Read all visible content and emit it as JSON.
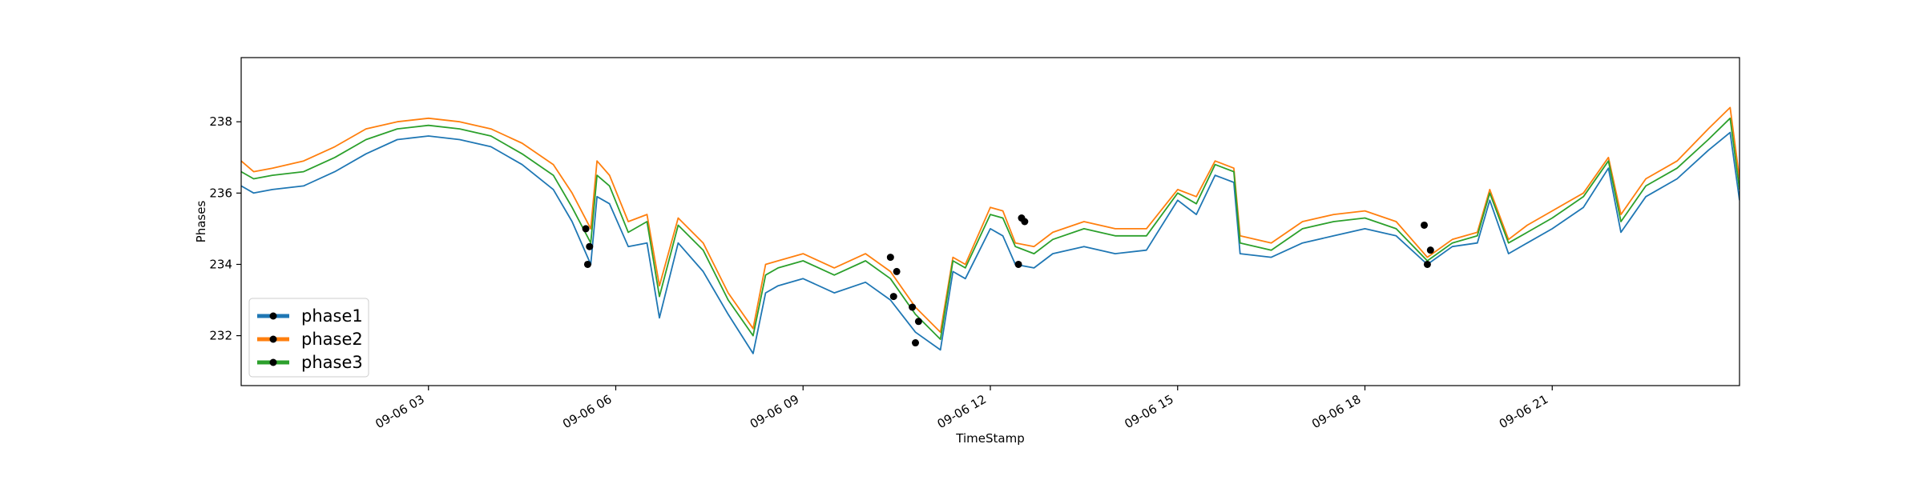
{
  "chart_data": {
    "type": "line",
    "title": "",
    "xlabel": "TimeStamp",
    "ylabel": "Phases",
    "x_unit": "hours since 09-06 00:00",
    "xlim": [
      0,
      24
    ],
    "ylim": [
      230.6,
      239.8
    ],
    "x_ticks": [
      {
        "value": 3,
        "label": "09-06 03"
      },
      {
        "value": 6,
        "label": "09-06 06"
      },
      {
        "value": 9,
        "label": "09-06 09"
      },
      {
        "value": 12,
        "label": "09-06 12"
      },
      {
        "value": 15,
        "label": "09-06 15"
      },
      {
        "value": 18,
        "label": "09-06 18"
      },
      {
        "value": 21,
        "label": "09-06 21"
      }
    ],
    "y_ticks": [
      232,
      234,
      236,
      238
    ],
    "grid": false,
    "legend_position": "lower-left",
    "series": [
      {
        "name": "phase1",
        "color": "#1f77b4",
        "x": [
          0.0,
          0.2,
          0.5,
          1.0,
          1.5,
          2.0,
          2.5,
          3.0,
          3.5,
          4.0,
          4.5,
          5.0,
          5.3,
          5.6,
          5.7,
          5.9,
          6.2,
          6.5,
          6.7,
          7.0,
          7.4,
          7.8,
          8.2,
          8.4,
          8.6,
          9.0,
          9.5,
          10.0,
          10.4,
          10.8,
          11.2,
          11.4,
          11.6,
          12.0,
          12.2,
          12.4,
          12.7,
          13.0,
          13.5,
          14.0,
          14.5,
          15.0,
          15.3,
          15.6,
          15.9,
          16.0,
          16.5,
          17.0,
          17.5,
          18.0,
          18.5,
          19.0,
          19.4,
          19.8,
          20.0,
          20.3,
          20.6,
          21.0,
          21.5,
          21.9,
          22.1,
          22.5,
          23.0,
          23.5,
          23.85,
          24.0
        ],
        "values": [
          236.2,
          236.0,
          236.1,
          236.2,
          236.6,
          237.1,
          237.5,
          237.6,
          237.5,
          237.3,
          236.8,
          236.1,
          235.2,
          234.0,
          235.9,
          235.7,
          234.5,
          234.6,
          232.5,
          234.6,
          233.8,
          232.6,
          231.5,
          233.2,
          233.4,
          233.6,
          233.2,
          233.5,
          233.0,
          232.1,
          231.6,
          233.8,
          233.6,
          235.0,
          234.8,
          234.0,
          233.9,
          234.3,
          234.5,
          234.3,
          234.4,
          235.8,
          235.4,
          236.5,
          236.3,
          234.3,
          234.2,
          234.6,
          234.8,
          235.0,
          234.8,
          234.0,
          234.5,
          234.6,
          235.8,
          234.3,
          234.6,
          235.0,
          235.6,
          236.7,
          234.9,
          235.9,
          236.4,
          237.2,
          237.7,
          235.8
        ]
      },
      {
        "name": "phase2",
        "color": "#ff7f0e",
        "x": [
          0.0,
          0.2,
          0.5,
          1.0,
          1.5,
          2.0,
          2.5,
          3.0,
          3.5,
          4.0,
          4.5,
          5.0,
          5.3,
          5.6,
          5.7,
          5.9,
          6.2,
          6.5,
          6.7,
          7.0,
          7.4,
          7.8,
          8.2,
          8.4,
          8.6,
          9.0,
          9.5,
          10.0,
          10.4,
          10.8,
          11.2,
          11.4,
          11.6,
          12.0,
          12.2,
          12.4,
          12.7,
          13.0,
          13.5,
          14.0,
          14.5,
          15.0,
          15.3,
          15.6,
          15.9,
          16.0,
          16.5,
          17.0,
          17.5,
          18.0,
          18.5,
          19.0,
          19.4,
          19.8,
          20.0,
          20.3,
          20.6,
          21.0,
          21.5,
          21.9,
          22.1,
          22.5,
          23.0,
          23.5,
          23.85,
          24.0
        ],
        "values": [
          236.9,
          236.6,
          236.7,
          236.9,
          237.3,
          237.8,
          238.0,
          238.1,
          238.0,
          237.8,
          237.4,
          236.8,
          236.0,
          235.0,
          236.9,
          236.5,
          235.2,
          235.4,
          233.4,
          235.3,
          234.6,
          233.2,
          232.2,
          234.0,
          234.1,
          234.3,
          233.9,
          234.3,
          233.8,
          232.8,
          232.1,
          234.2,
          234.0,
          235.6,
          235.5,
          234.6,
          234.5,
          234.9,
          235.2,
          235.0,
          235.0,
          236.1,
          235.9,
          236.9,
          236.7,
          234.8,
          234.6,
          235.2,
          235.4,
          235.5,
          235.2,
          234.2,
          234.7,
          234.9,
          236.1,
          234.7,
          235.1,
          235.5,
          236.0,
          237.0,
          235.4,
          236.4,
          236.9,
          237.8,
          238.4,
          236.4
        ]
      },
      {
        "name": "phase3",
        "color": "#2ca02c",
        "x": [
          0.0,
          0.2,
          0.5,
          1.0,
          1.5,
          2.0,
          2.5,
          3.0,
          3.5,
          4.0,
          4.5,
          5.0,
          5.3,
          5.6,
          5.7,
          5.9,
          6.2,
          6.5,
          6.7,
          7.0,
          7.4,
          7.8,
          8.2,
          8.4,
          8.6,
          9.0,
          9.5,
          10.0,
          10.4,
          10.8,
          11.2,
          11.4,
          11.6,
          12.0,
          12.2,
          12.4,
          12.7,
          13.0,
          13.5,
          14.0,
          14.5,
          15.0,
          15.3,
          15.6,
          15.9,
          16.0,
          16.5,
          17.0,
          17.5,
          18.0,
          18.5,
          19.0,
          19.4,
          19.8,
          20.0,
          20.3,
          20.6,
          21.0,
          21.5,
          21.9,
          22.1,
          22.5,
          23.0,
          23.5,
          23.85,
          24.0
        ],
        "values": [
          236.6,
          236.4,
          236.5,
          236.6,
          237.0,
          237.5,
          237.8,
          237.9,
          237.8,
          237.6,
          237.1,
          236.5,
          235.6,
          234.6,
          236.5,
          236.2,
          234.9,
          235.2,
          233.1,
          235.1,
          234.4,
          233.0,
          232.0,
          233.7,
          233.9,
          234.1,
          233.7,
          234.1,
          233.6,
          232.6,
          231.9,
          234.1,
          233.9,
          235.4,
          235.3,
          234.5,
          234.3,
          234.7,
          235.0,
          234.8,
          234.8,
          236.0,
          235.7,
          236.8,
          236.6,
          234.6,
          234.4,
          235.0,
          235.2,
          235.3,
          235.0,
          234.1,
          234.6,
          234.8,
          236.0,
          234.6,
          234.9,
          235.3,
          235.9,
          236.9,
          235.2,
          236.2,
          236.7,
          237.5,
          238.1,
          236.1
        ]
      }
    ],
    "markers": [
      {
        "series": "phase1",
        "x": [
          5.55,
          10.45,
          10.8,
          12.45,
          19.0
        ],
        "values": [
          234.0,
          233.1,
          231.8,
          234.0,
          234.0
        ]
      },
      {
        "series": "phase2",
        "x": [
          5.52,
          10.4,
          10.75,
          12.5,
          18.95
        ],
        "values": [
          235.0,
          234.2,
          232.8,
          235.3,
          235.1
        ]
      },
      {
        "series": "phase3",
        "x": [
          5.58,
          10.5,
          10.85,
          12.55,
          19.05
        ],
        "values": [
          234.5,
          233.8,
          232.4,
          235.2,
          234.4
        ]
      }
    ]
  }
}
